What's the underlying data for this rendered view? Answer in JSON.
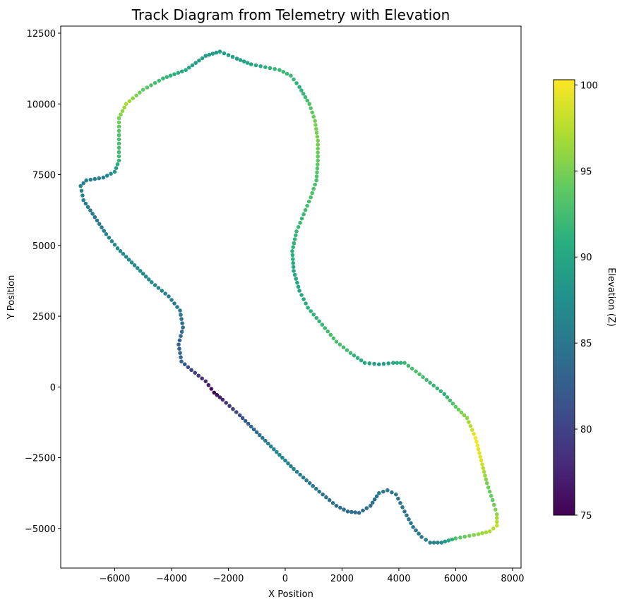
{
  "chart_data": {
    "type": "scatter",
    "title": "Track Diagram from Telemetry with Elevation",
    "xlabel": "X Position",
    "ylabel": "Y Position",
    "xlim": [
      -7900,
      8300
    ],
    "ylim": [
      -6400,
      12750
    ],
    "x_ticks": [
      -6000,
      -4000,
      -2000,
      0,
      2000,
      4000,
      6000,
      8000
    ],
    "x_tick_labels": [
      "−6000",
      "−4000",
      "−2000",
      "0",
      "2000",
      "4000",
      "6000",
      "8000"
    ],
    "y_ticks": [
      -5000,
      -2500,
      0,
      2500,
      5000,
      7500,
      10000,
      12500
    ],
    "y_tick_labels": [
      "−5000",
      "−2500",
      "0",
      "2500",
      "5000",
      "7500",
      "10000",
      "12500"
    ],
    "grid": false,
    "colorbar": {
      "label": "Elevation (Z)",
      "range": [
        75,
        100.3
      ],
      "ticks": [
        75,
        80,
        85,
        90,
        95,
        100
      ],
      "tick_labels": [
        "75",
        "80",
        "85",
        "90",
        "95",
        "100"
      ],
      "colormap": "viridis"
    },
    "track_anchors": [
      {
        "x": -2500,
        "y": -200,
        "z": 75
      },
      {
        "x": -2200,
        "y": -450,
        "z": 78
      },
      {
        "x": -1600,
        "y": -1000,
        "z": 81
      },
      {
        "x": -1000,
        "y": -1600,
        "z": 84
      },
      {
        "x": -300,
        "y": -2300,
        "z": 87
      },
      {
        "x": 300,
        "y": -2900,
        "z": 86
      },
      {
        "x": 1200,
        "y": -3700,
        "z": 85
      },
      {
        "x": 1800,
        "y": -4200,
        "z": 84
      },
      {
        "x": 2200,
        "y": -4400,
        "z": 84
      },
      {
        "x": 2600,
        "y": -4450,
        "z": 84
      },
      {
        "x": 3000,
        "y": -4200,
        "z": 84
      },
      {
        "x": 3300,
        "y": -3750,
        "z": 85
      },
      {
        "x": 3600,
        "y": -3650,
        "z": 85
      },
      {
        "x": 3900,
        "y": -3800,
        "z": 85
      },
      {
        "x": 4200,
        "y": -4400,
        "z": 85
      },
      {
        "x": 4500,
        "y": -4950,
        "z": 85
      },
      {
        "x": 4800,
        "y": -5300,
        "z": 85
      },
      {
        "x": 5100,
        "y": -5500,
        "z": 86
      },
      {
        "x": 5500,
        "y": -5500,
        "z": 87
      },
      {
        "x": 6000,
        "y": -5350,
        "z": 93
      },
      {
        "x": 6800,
        "y": -5200,
        "z": 96
      },
      {
        "x": 7200,
        "y": -5100,
        "z": 97
      },
      {
        "x": 7450,
        "y": -4900,
        "z": 98
      },
      {
        "x": 7450,
        "y": -4500,
        "z": 96
      },
      {
        "x": 7300,
        "y": -4000,
        "z": 94
      },
      {
        "x": 7100,
        "y": -3400,
        "z": 95
      },
      {
        "x": 6900,
        "y": -2600,
        "z": 99
      },
      {
        "x": 6700,
        "y": -1800,
        "z": 100
      },
      {
        "x": 6400,
        "y": -1100,
        "z": 96
      },
      {
        "x": 6000,
        "y": -700,
        "z": 94
      },
      {
        "x": 5600,
        "y": -250,
        "z": 91
      },
      {
        "x": 5100,
        "y": 150,
        "z": 92
      },
      {
        "x": 4600,
        "y": 550,
        "z": 93
      },
      {
        "x": 4200,
        "y": 850,
        "z": 92
      },
      {
        "x": 3800,
        "y": 850,
        "z": 90
      },
      {
        "x": 3300,
        "y": 800,
        "z": 89
      },
      {
        "x": 2800,
        "y": 850,
        "z": 90
      },
      {
        "x": 2300,
        "y": 1200,
        "z": 92
      },
      {
        "x": 1800,
        "y": 1600,
        "z": 93
      },
      {
        "x": 1300,
        "y": 2200,
        "z": 92
      },
      {
        "x": 800,
        "y": 2800,
        "z": 91
      },
      {
        "x": 500,
        "y": 3400,
        "z": 90
      },
      {
        "x": 300,
        "y": 4100,
        "z": 90
      },
      {
        "x": 250,
        "y": 4800,
        "z": 91
      },
      {
        "x": 400,
        "y": 5500,
        "z": 92
      },
      {
        "x": 650,
        "y": 6100,
        "z": 92
      },
      {
        "x": 900,
        "y": 6700,
        "z": 93
      },
      {
        "x": 1100,
        "y": 7300,
        "z": 93
      },
      {
        "x": 1150,
        "y": 8000,
        "z": 94
      },
      {
        "x": 1150,
        "y": 8700,
        "z": 95
      },
      {
        "x": 1050,
        "y": 9400,
        "z": 95
      },
      {
        "x": 850,
        "y": 10000,
        "z": 93
      },
      {
        "x": 500,
        "y": 10600,
        "z": 91
      },
      {
        "x": 200,
        "y": 11000,
        "z": 92
      },
      {
        "x": -200,
        "y": 11200,
        "z": 92
      },
      {
        "x": -700,
        "y": 11300,
        "z": 91
      },
      {
        "x": -1200,
        "y": 11400,
        "z": 90
      },
      {
        "x": -1700,
        "y": 11600,
        "z": 89
      },
      {
        "x": -2300,
        "y": 11850,
        "z": 89
      },
      {
        "x": -2800,
        "y": 11700,
        "z": 89
      },
      {
        "x": -3500,
        "y": 11200,
        "z": 90
      },
      {
        "x": -4300,
        "y": 10900,
        "z": 92
      },
      {
        "x": -5000,
        "y": 10500,
        "z": 94
      },
      {
        "x": -5600,
        "y": 10000,
        "z": 97
      },
      {
        "x": -5850,
        "y": 9500,
        "z": 95
      },
      {
        "x": -5850,
        "y": 8900,
        "z": 93
      },
      {
        "x": -5850,
        "y": 8000,
        "z": 92
      },
      {
        "x": -6000,
        "y": 7600,
        "z": 88
      },
      {
        "x": -6400,
        "y": 7400,
        "z": 86
      },
      {
        "x": -7000,
        "y": 7300,
        "z": 86
      },
      {
        "x": -7200,
        "y": 7100,
        "z": 86
      },
      {
        "x": -7100,
        "y": 6600,
        "z": 86
      },
      {
        "x": -6700,
        "y": 6000,
        "z": 85
      },
      {
        "x": -6300,
        "y": 5400,
        "z": 86
      },
      {
        "x": -5900,
        "y": 4900,
        "z": 87
      },
      {
        "x": -5300,
        "y": 4300,
        "z": 87
      },
      {
        "x": -4700,
        "y": 3700,
        "z": 87
      },
      {
        "x": -4100,
        "y": 3200,
        "z": 86
      },
      {
        "x": -3700,
        "y": 2700,
        "z": 85
      },
      {
        "x": -3600,
        "y": 2100,
        "z": 84
      },
      {
        "x": -3750,
        "y": 1500,
        "z": 83
      },
      {
        "x": -3650,
        "y": 900,
        "z": 83
      },
      {
        "x": -3300,
        "y": 600,
        "z": 80
      },
      {
        "x": -2800,
        "y": 200,
        "z": 78
      }
    ]
  }
}
